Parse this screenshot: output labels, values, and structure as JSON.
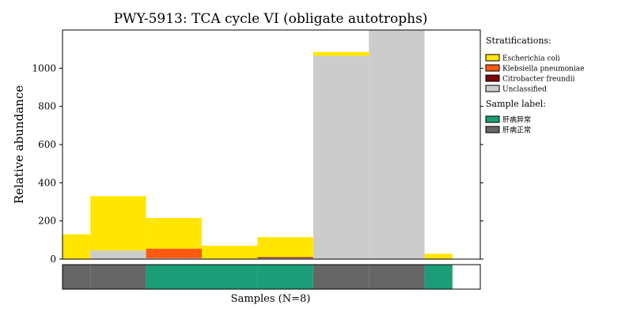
{
  "chart_data": {
    "type": "bar",
    "stacked": true,
    "title": "PWY-5913: TCA cycle VI (obligate autotrophs)",
    "xlabel": "Samples (N=8)",
    "ylabel": "Relative abundance",
    "ylim": [
      0,
      1200
    ],
    "yticks": [
      0,
      200,
      400,
      600,
      800,
      1000
    ],
    "grid": false,
    "legend_position": "right",
    "sample_widths": [
      0.5,
      1,
      1,
      1,
      1,
      1,
      1,
      0.5
    ],
    "series": [
      {
        "name": "Unclassified",
        "color": "#cccccc",
        "values": [
          0,
          45,
          5,
          0,
          5,
          1065,
          1200,
          0
        ]
      },
      {
        "name": "Citrobacter freundii",
        "color": "#7a0a0a",
        "values": [
          0,
          0,
          0,
          0,
          5,
          0,
          0,
          0
        ]
      },
      {
        "name": "Klebsiella pneumoniae",
        "color": "#ff5a0f",
        "values": [
          0,
          0,
          50,
          0,
          0,
          0,
          0,
          0
        ]
      },
      {
        "name": "Escherichia coli",
        "color": "#ffe500",
        "values": [
          130,
          285,
          160,
          70,
          105,
          20,
          0,
          28
        ]
      }
    ],
    "legend": {
      "strat_title": "Stratifications:",
      "strat_items": [
        {
          "label": "Escherichia coli",
          "color": "#ffe500"
        },
        {
          "label": "Klebsiella pneumoniae",
          "color": "#ff5a0f"
        },
        {
          "label": "Citrobacter freundii",
          "color": "#7a0a0a"
        },
        {
          "label": "Unclassified",
          "color": "#cccccc"
        }
      ],
      "sample_title": "Sample label:",
      "sample_items": [
        {
          "label": "肝病异常",
          "color": "#1b9e77"
        },
        {
          "label": "肝病正常",
          "color": "#666666"
        }
      ]
    },
    "sample_labels": [
      "肝病正常",
      "肝病正常",
      "肝病异常",
      "肝病异常",
      "肝病异常",
      "肝病正常",
      "肝病正常",
      "肝病异常"
    ],
    "sample_label_colors": {
      "肝病异常": "#1b9e77",
      "肝病正常": "#666666"
    }
  }
}
